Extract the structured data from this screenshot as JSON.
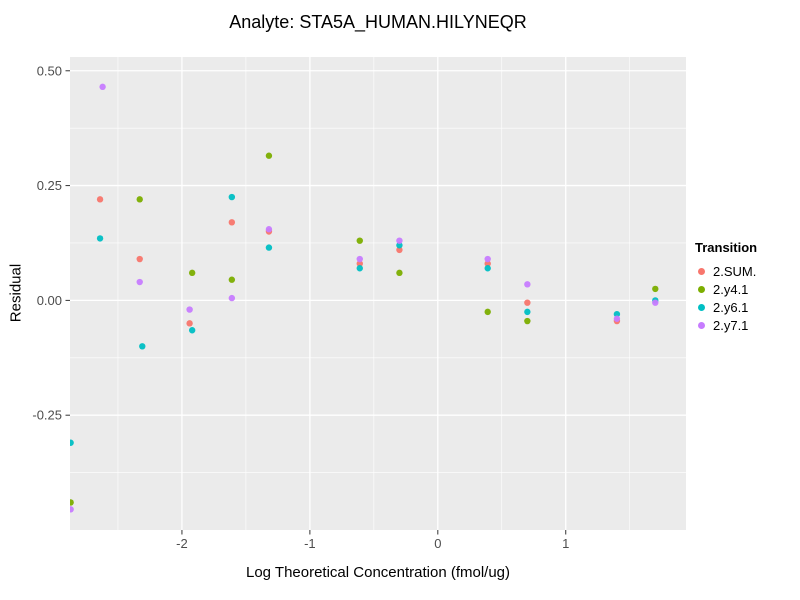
{
  "chart_data": {
    "type": "scatter",
    "title": "Analyte: STA5A_HUMAN.HILYNEQR",
    "xlabel": "Log Theoretical Concentration (fmol/ug)",
    "ylabel": "Residual",
    "legend_title": "Transition",
    "xlim": [
      -2.875,
      1.94
    ],
    "ylim": [
      -0.5,
      0.53
    ],
    "panel_bg": "#EBEBEB",
    "grid_color": "#FFFFFF",
    "tick_label_color": "#4D4D4D",
    "x_ticks": {
      "values": [
        -2,
        -1,
        0,
        1
      ],
      "labels": [
        "-2",
        "-1",
        "0",
        "1"
      ],
      "minor": [
        -2.5,
        -1.5,
        -0.5,
        0.5,
        1.5
      ]
    },
    "y_ticks": {
      "values": [
        -0.25,
        0,
        0.25,
        0.5
      ],
      "labels": [
        "-0.25",
        "0.00",
        "0.25",
        "0.50"
      ],
      "minor": [
        -0.375,
        -0.125,
        0.125,
        0.375
      ]
    },
    "series": [
      {
        "name": "2.SUM.",
        "color": "#F8766D",
        "points": [
          [
            -2.64,
            0.22
          ],
          [
            -2.33,
            0.09
          ],
          [
            -1.94,
            -0.05
          ],
          [
            -1.61,
            0.17
          ],
          [
            -1.32,
            0.15
          ],
          [
            -0.61,
            0.08
          ],
          [
            -0.3,
            0.11
          ],
          [
            0.39,
            0.08
          ],
          [
            0.7,
            -0.005
          ],
          [
            1.4,
            -0.045
          ]
        ]
      },
      {
        "name": "2.y4.1",
        "color": "#7CAE00",
        "points": [
          [
            -2.87,
            -0.44
          ],
          [
            -2.33,
            0.22
          ],
          [
            -1.92,
            0.06
          ],
          [
            -1.61,
            0.045
          ],
          [
            -1.32,
            0.315
          ],
          [
            -0.61,
            0.13
          ],
          [
            -0.3,
            0.06
          ],
          [
            0.39,
            -0.025
          ],
          [
            0.7,
            -0.045
          ],
          [
            1.7,
            0.025
          ]
        ]
      },
      {
        "name": "2.y6.1",
        "color": "#00BFC4",
        "points": [
          [
            -2.87,
            -0.31
          ],
          [
            -2.64,
            0.135
          ],
          [
            -2.31,
            -0.1
          ],
          [
            -1.92,
            -0.065
          ],
          [
            -1.61,
            0.225
          ],
          [
            -1.32,
            0.115
          ],
          [
            -0.61,
            0.07
          ],
          [
            -0.3,
            0.12
          ],
          [
            0.39,
            0.07
          ],
          [
            0.7,
            -0.025
          ],
          [
            1.4,
            -0.03
          ],
          [
            1.7,
            0.0
          ]
        ]
      },
      {
        "name": "2.y7.1",
        "color": "#C77CFF",
        "points": [
          [
            -2.87,
            -0.455
          ],
          [
            -2.62,
            0.465
          ],
          [
            -2.33,
            0.04
          ],
          [
            -1.94,
            -0.02
          ],
          [
            -1.61,
            0.005
          ],
          [
            -1.32,
            0.155
          ],
          [
            -0.61,
            0.09
          ],
          [
            -0.3,
            0.13
          ],
          [
            0.39,
            0.09
          ],
          [
            0.7,
            0.035
          ],
          [
            1.4,
            -0.04
          ],
          [
            1.7,
            -0.005
          ]
        ]
      }
    ]
  }
}
